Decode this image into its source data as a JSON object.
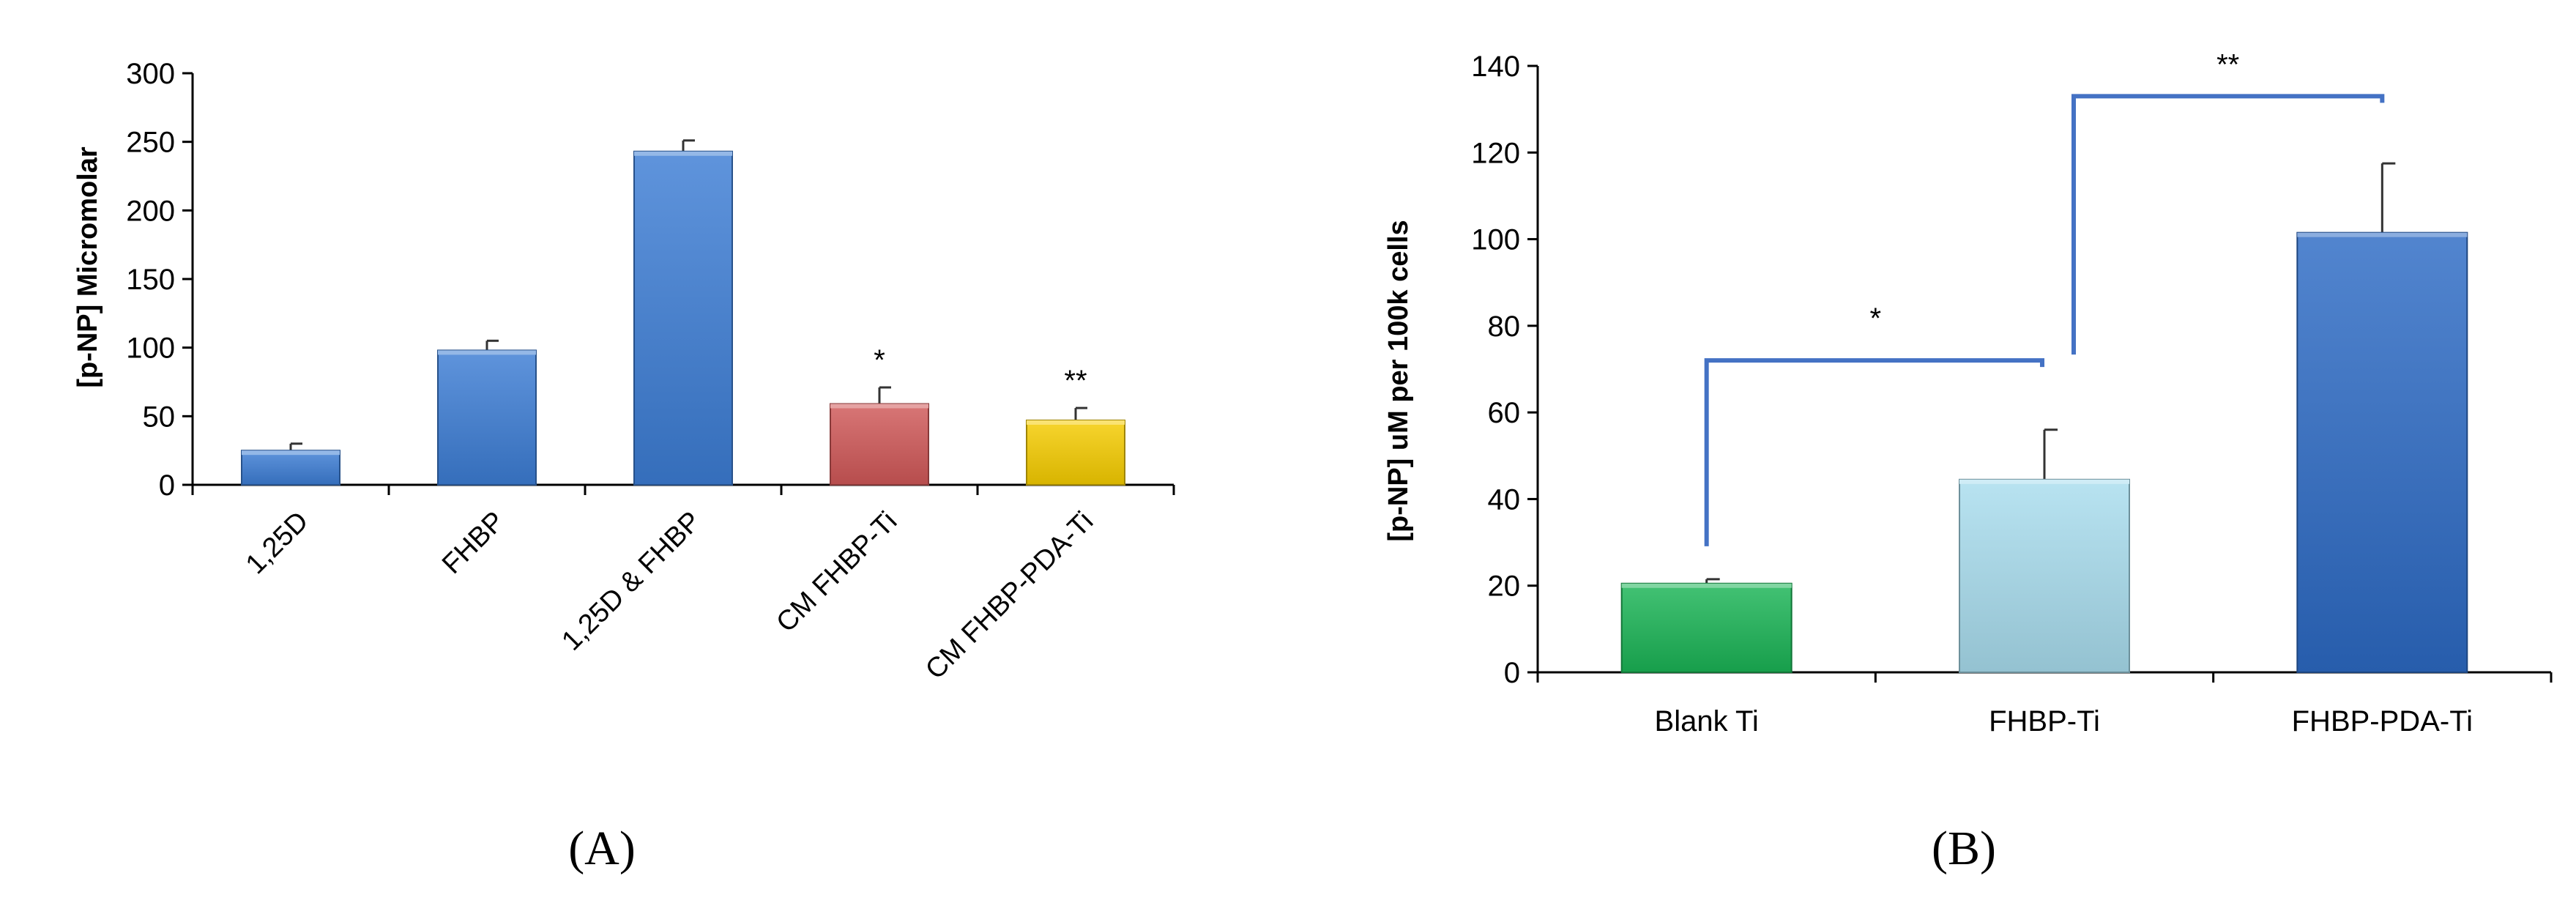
{
  "chart_data": [
    {
      "panel": "(A)",
      "type": "bar",
      "ylabel": "[p-NP] Micromolar",
      "xlabel": "",
      "ylim": [
        0,
        300
      ],
      "yticks": [
        0,
        50,
        100,
        150,
        200,
        250,
        300
      ],
      "categories": [
        "1,25D",
        "FHBP",
        "1,25D & FHBP",
        "CM FHBP-Ti",
        "CM FHBP-PDA-Ti"
      ],
      "values": [
        25,
        98,
        243,
        59,
        47
      ],
      "errors": [
        5,
        7,
        8,
        12,
        9
      ],
      "colors": [
        "#3C7DD4",
        "#3C7DD4",
        "#3C7DD4",
        "#D05858",
        "#F5CC00"
      ],
      "annotations": [
        "",
        "",
        "",
        "*",
        "**"
      ],
      "grid": false
    },
    {
      "panel": "(B)",
      "type": "bar",
      "ylabel": "[p-NP] uM per 100k cells",
      "xlabel": "",
      "ylim": [
        0,
        140
      ],
      "yticks": [
        0,
        20,
        40,
        60,
        80,
        100,
        120,
        140
      ],
      "categories": [
        "Blank Ti",
        "FHBP-Ti",
        "FHBP-PDA-Ti"
      ],
      "values": [
        20.5,
        44.5,
        101.5
      ],
      "errors": [
        1,
        11.5,
        16
      ],
      "colors": [
        "#1AB455",
        "#A8DDEE",
        "#2C6AC4"
      ],
      "bracket_color": "#4472C4",
      "brackets": [
        {
          "from": "Blank Ti",
          "to": "FHBP-Ti",
          "label": "*"
        },
        {
          "from": "FHBP-Ti",
          "to": "FHBP-PDA-Ti",
          "label": "**"
        }
      ],
      "grid": false
    }
  ]
}
